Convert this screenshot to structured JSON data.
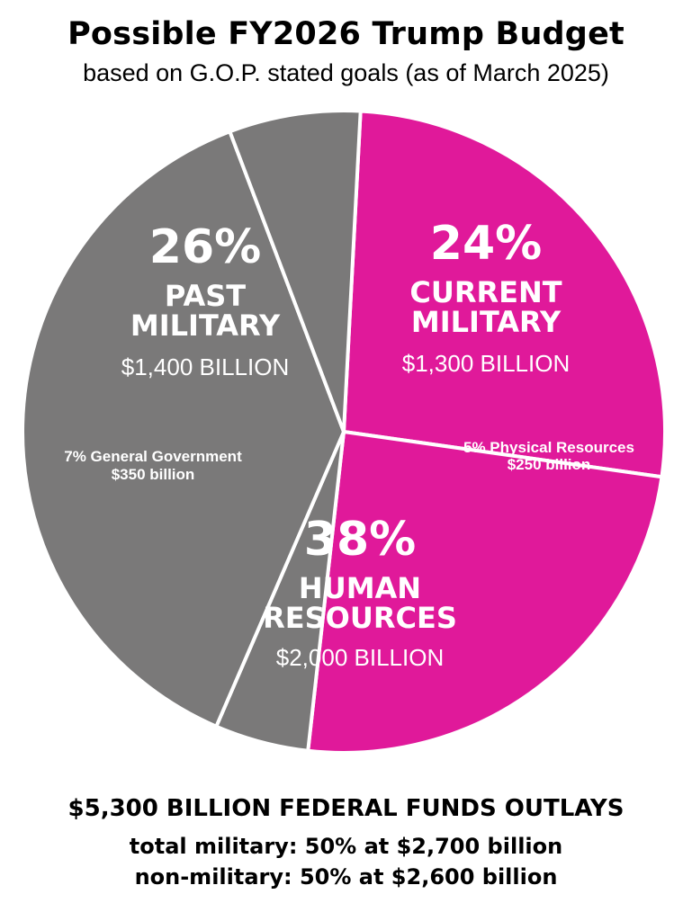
{
  "title": "Possible FY2026 Trump Budget",
  "subtitle": "based on G.O.P. stated goals (as of March 2025)",
  "colors": {
    "military": "#e0199a",
    "non_military": "#7a7979",
    "divider": "#ffffff"
  },
  "chart_data": {
    "type": "pie",
    "title": "Possible FY2026 Trump Budget",
    "subtitle": "based on G.O.P. stated goals (as of March 2025)",
    "slices": [
      {
        "label_lines": [
          "PAST",
          "MILITARY"
        ],
        "percent_text": "26%",
        "amount_text": "$1,400 BILLION",
        "percent": 26,
        "value": 1400,
        "color": "#e0199a"
      },
      {
        "label_lines": [
          "CURRENT",
          "MILITARY"
        ],
        "percent_text": "24%",
        "amount_text": "$1,300 BILLION",
        "percent": 24,
        "value": 1300,
        "color": "#e0199a"
      },
      {
        "label_lines": [
          "5% Physical  Resources"
        ],
        "amount_text": "$250 billion",
        "percent": 5,
        "value": 250,
        "color": "#7a7979"
      },
      {
        "label_lines": [
          "HUMAN",
          "RESOURCES"
        ],
        "percent_text": "38%",
        "amount_text": "$2,000 BILLION",
        "percent": 38,
        "value": 2000,
        "color": "#7a7979"
      },
      {
        "label_lines": [
          "7% General Government"
        ],
        "amount_text": "$350 billion",
        "percent": 7,
        "value": 350,
        "color": "#7a7979"
      }
    ]
  },
  "footer": {
    "line1": "$5,300 BILLION FEDERAL FUNDS OUTLAYS",
    "line2": "total military: 50% at $2,700 billion",
    "line3": "non-military: 50% at $2,600 billion"
  }
}
